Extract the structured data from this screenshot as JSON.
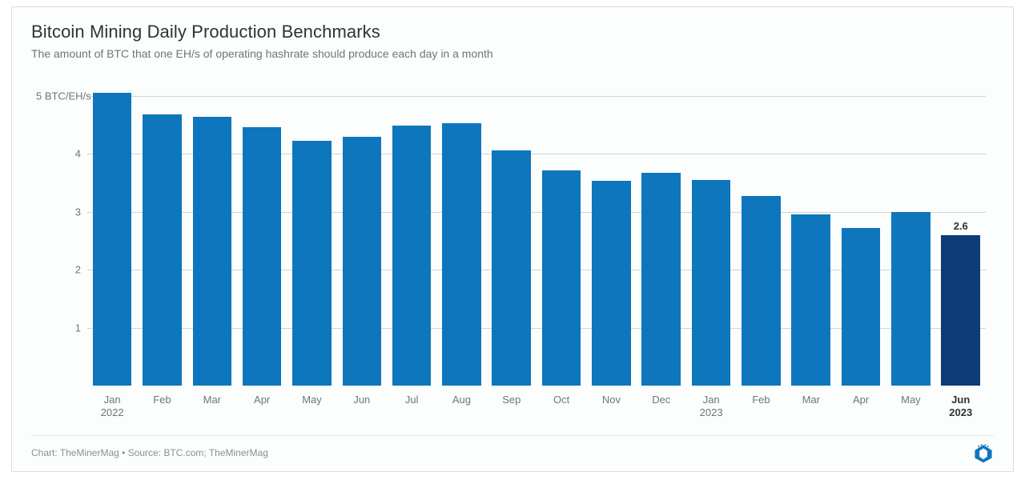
{
  "chart": {
    "type": "bar",
    "title": "Bitcoin Mining Daily Production Benchmarks",
    "subtitle": "The amount of BTC that one EH/s of operating hashrate should produce each day in a month",
    "title_fontsize": 22,
    "subtitle_fontsize": 14,
    "title_color": "#2f3336",
    "subtitle_color": "#6f7579",
    "background_color": "#fcfdfd",
    "border_color": "#d9dcde",
    "grid_color": "#cfd4d7",
    "axis_label_color": "#6f7579",
    "axis_label_fontsize": 13,
    "bar_width": 0.78,
    "y": {
      "min": 0,
      "max": 5.2,
      "ticks": [
        {
          "v": 1,
          "label": "1"
        },
        {
          "v": 2,
          "label": "2"
        },
        {
          "v": 3,
          "label": "3"
        },
        {
          "v": 4,
          "label": "4"
        },
        {
          "v": 5,
          "label": "5 BTC/EH/s"
        }
      ]
    },
    "categories": [
      {
        "label": "Jan",
        "sub": "2022",
        "bold": false
      },
      {
        "label": "Feb",
        "sub": "",
        "bold": false
      },
      {
        "label": "Mar",
        "sub": "",
        "bold": false
      },
      {
        "label": "Apr",
        "sub": "",
        "bold": false
      },
      {
        "label": "May",
        "sub": "",
        "bold": false
      },
      {
        "label": "Jun",
        "sub": "",
        "bold": false
      },
      {
        "label": "Jul",
        "sub": "",
        "bold": false
      },
      {
        "label": "Aug",
        "sub": "",
        "bold": false
      },
      {
        "label": "Sep",
        "sub": "",
        "bold": false
      },
      {
        "label": "Oct",
        "sub": "",
        "bold": false
      },
      {
        "label": "Nov",
        "sub": "",
        "bold": false
      },
      {
        "label": "Dec",
        "sub": "",
        "bold": false
      },
      {
        "label": "Jan",
        "sub": "2023",
        "bold": false
      },
      {
        "label": "Feb",
        "sub": "",
        "bold": false
      },
      {
        "label": "Mar",
        "sub": "",
        "bold": false
      },
      {
        "label": "Apr",
        "sub": "",
        "bold": false
      },
      {
        "label": "May",
        "sub": "",
        "bold": false
      },
      {
        "label": "Jun",
        "sub": "2023",
        "bold": true
      }
    ],
    "values": [
      5.05,
      4.68,
      4.63,
      4.46,
      4.22,
      4.29,
      4.48,
      4.52,
      4.06,
      3.71,
      3.53,
      3.67,
      3.55,
      3.27,
      2.95,
      2.72,
      2.99,
      2.6
    ],
    "bar_colors": [
      "#0e76bc",
      "#0e76bc",
      "#0e76bc",
      "#0e76bc",
      "#0e76bc",
      "#0e76bc",
      "#0e76bc",
      "#0e76bc",
      "#0e76bc",
      "#0e76bc",
      "#0e76bc",
      "#0e76bc",
      "#0e76bc",
      "#0e76bc",
      "#0e76bc",
      "#0e76bc",
      "#0e76bc",
      "#0c3c78"
    ],
    "value_labels": {
      "17": "2.6"
    },
    "value_label_fontsize": 13,
    "value_label_color": "#2f3336"
  },
  "footer": {
    "credit": "Chart: TheMinerMag  •  Source: BTC.com; TheMinerMag",
    "credit_color": "#8a9094",
    "credit_fontsize": 12,
    "logo_color": "#0e76bc"
  }
}
